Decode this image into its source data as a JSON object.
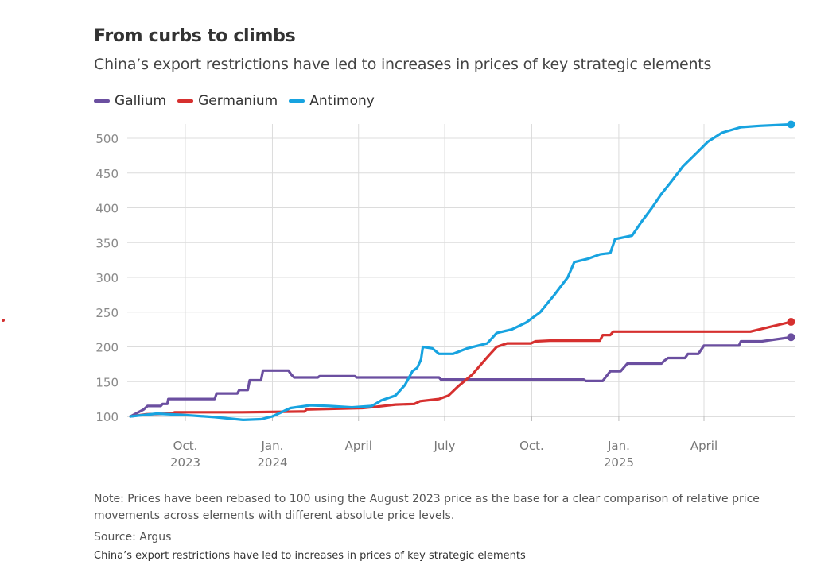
{
  "title": "From curbs to climbs",
  "subtitle": "China’s export restrictions have led to increases in prices of key strategic elements",
  "note": "Note: Prices have been rebased to 100 using the August 2023 price as the base for a clear comparison of relative price movements across elements with different absolute price levels.",
  "source": "Source: Argus",
  "caption": "China’s export restrictions have led to increases in prices of key strategic elements",
  "chart_data": {
    "type": "line",
    "title": "From curbs to climbs",
    "subtitle": "China’s export restrictions have led to increases in prices of key strategic elements",
    "xlabel": "",
    "ylabel": "",
    "ylim": [
      100,
      520
    ],
    "y_ticks": [
      100,
      150,
      200,
      250,
      300,
      350,
      400,
      450,
      500
    ],
    "x_ticks": [
      {
        "date": "2023-10-01",
        "label": [
          "Oct.",
          "2023"
        ]
      },
      {
        "date": "2024-01-01",
        "label": [
          "Jan.",
          "2024"
        ]
      },
      {
        "date": "2024-04-01",
        "label": [
          "April"
        ]
      },
      {
        "date": "2024-07-01",
        "label": [
          "July"
        ]
      },
      {
        "date": "2024-10-01",
        "label": [
          "Oct."
        ]
      },
      {
        "date": "2025-01-01",
        "label": [
          "Jan.",
          "2025"
        ]
      },
      {
        "date": "2025-04-01",
        "label": [
          "April"
        ]
      }
    ],
    "grid": true,
    "legend_position": "top-left",
    "series": [
      {
        "name": "Gallium",
        "color": "#6b4fa0",
        "points": [
          [
            "2023-08-04",
            100
          ],
          [
            "2023-08-18",
            110
          ],
          [
            "2023-08-22",
            115
          ],
          [
            "2023-09-05",
            115
          ],
          [
            "2023-09-07",
            118
          ],
          [
            "2023-09-12",
            118
          ],
          [
            "2023-09-13",
            125
          ],
          [
            "2023-10-15",
            125
          ],
          [
            "2023-11-01",
            125
          ],
          [
            "2023-11-03",
            133
          ],
          [
            "2023-11-25",
            133
          ],
          [
            "2023-11-27",
            138
          ],
          [
            "2023-12-06",
            138
          ],
          [
            "2023-12-08",
            152
          ],
          [
            "2023-12-20",
            152
          ],
          [
            "2023-12-22",
            166
          ],
          [
            "2024-01-18",
            166
          ],
          [
            "2024-01-21",
            160
          ],
          [
            "2024-01-24",
            156
          ],
          [
            "2024-02-18",
            156
          ],
          [
            "2024-02-20",
            158
          ],
          [
            "2024-03-28",
            158
          ],
          [
            "2024-03-30",
            156
          ],
          [
            "2024-06-25",
            156
          ],
          [
            "2024-06-27",
            153
          ],
          [
            "2024-11-25",
            153
          ],
          [
            "2024-11-27",
            151
          ],
          [
            "2024-12-15",
            151
          ],
          [
            "2024-12-23",
            165
          ],
          [
            "2025-01-03",
            165
          ],
          [
            "2025-01-10",
            176
          ],
          [
            "2025-02-15",
            176
          ],
          [
            "2025-02-18",
            180
          ],
          [
            "2025-02-22",
            184
          ],
          [
            "2025-03-12",
            184
          ],
          [
            "2025-03-15",
            190
          ],
          [
            "2025-03-26",
            190
          ],
          [
            "2025-04-01",
            202
          ],
          [
            "2025-05-08",
            202
          ],
          [
            "2025-05-10",
            208
          ],
          [
            "2025-06-01",
            208
          ],
          [
            "2025-07-02",
            214
          ]
        ]
      },
      {
        "name": "Germanium",
        "color": "#d6302f",
        "points": [
          [
            "2023-08-04",
            100
          ],
          [
            "2023-08-20",
            103
          ],
          [
            "2023-09-15",
            104
          ],
          [
            "2023-09-20",
            106
          ],
          [
            "2023-11-30",
            106
          ],
          [
            "2024-01-31",
            107
          ],
          [
            "2024-02-04",
            107
          ],
          [
            "2024-02-06",
            110
          ],
          [
            "2024-04-05",
            112
          ],
          [
            "2024-04-20",
            114
          ],
          [
            "2024-05-10",
            117
          ],
          [
            "2024-05-30",
            118
          ],
          [
            "2024-06-05",
            122
          ],
          [
            "2024-06-25",
            125
          ],
          [
            "2024-07-05",
            130
          ],
          [
            "2024-07-15",
            143
          ],
          [
            "2024-07-30",
            160
          ],
          [
            "2024-08-15",
            185
          ],
          [
            "2024-08-25",
            200
          ],
          [
            "2024-09-05",
            205
          ],
          [
            "2024-09-30",
            205
          ],
          [
            "2024-10-05",
            208
          ],
          [
            "2024-10-20",
            209
          ],
          [
            "2024-11-30",
            209
          ],
          [
            "2024-12-12",
            209
          ],
          [
            "2024-12-15",
            217
          ],
          [
            "2024-12-23",
            217
          ],
          [
            "2024-12-26",
            222
          ],
          [
            "2025-05-10",
            222
          ],
          [
            "2025-05-20",
            222
          ],
          [
            "2025-07-02",
            236
          ]
        ]
      },
      {
        "name": "Antimony",
        "color": "#17a3e0",
        "points": [
          [
            "2023-08-04",
            100
          ],
          [
            "2023-09-01",
            104
          ],
          [
            "2023-10-01",
            102
          ],
          [
            "2023-11-01",
            99
          ],
          [
            "2023-12-01",
            95
          ],
          [
            "2023-12-20",
            96
          ],
          [
            "2024-01-01",
            100
          ],
          [
            "2024-01-20",
            112
          ],
          [
            "2024-02-10",
            116
          ],
          [
            "2024-03-01",
            115
          ],
          [
            "2024-03-25",
            113
          ],
          [
            "2024-04-15",
            115
          ],
          [
            "2024-04-25",
            123
          ],
          [
            "2024-05-10",
            130
          ],
          [
            "2024-05-20",
            145
          ],
          [
            "2024-05-28",
            165
          ],
          [
            "2024-06-02",
            170
          ],
          [
            "2024-06-06",
            182
          ],
          [
            "2024-06-08",
            200
          ],
          [
            "2024-06-18",
            198
          ],
          [
            "2024-06-25",
            190
          ],
          [
            "2024-07-10",
            190
          ],
          [
            "2024-07-25",
            198
          ],
          [
            "2024-08-15",
            205
          ],
          [
            "2024-08-25",
            220
          ],
          [
            "2024-09-10",
            225
          ],
          [
            "2024-09-25",
            235
          ],
          [
            "2024-10-10",
            250
          ],
          [
            "2024-10-25",
            275
          ],
          [
            "2024-11-08",
            300
          ],
          [
            "2024-11-15",
            322
          ],
          [
            "2024-11-30",
            327
          ],
          [
            "2024-12-12",
            333
          ],
          [
            "2024-12-23",
            335
          ],
          [
            "2024-12-28",
            355
          ],
          [
            "2025-01-15",
            360
          ],
          [
            "2025-01-25",
            380
          ],
          [
            "2025-02-05",
            400
          ],
          [
            "2025-02-15",
            420
          ],
          [
            "2025-02-25",
            437
          ],
          [
            "2025-03-10",
            460
          ],
          [
            "2025-03-25",
            480
          ],
          [
            "2025-04-05",
            495
          ],
          [
            "2025-04-20",
            508
          ],
          [
            "2025-05-10",
            516
          ],
          [
            "2025-05-30",
            518
          ],
          [
            "2025-07-02",
            520
          ]
        ]
      }
    ]
  }
}
